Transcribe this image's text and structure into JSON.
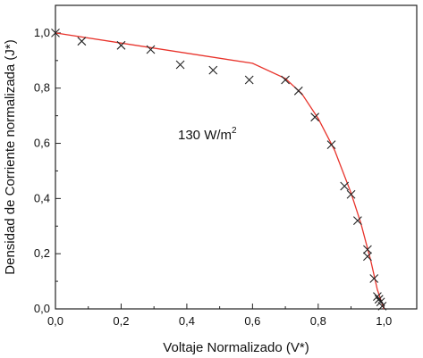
{
  "chart_data": {
    "type": "scatter",
    "xlabel": "Voltaje Normalizado (V*)",
    "ylabel": "Densidad de Corriente normalizada (J*)",
    "xlim": [
      0.0,
      1.1
    ],
    "ylim": [
      0.0,
      1.1
    ],
    "x_ticks": [
      "0,0",
      "0,2",
      "0,4",
      "0,6",
      "0,8",
      "1,0"
    ],
    "y_ticks": [
      "0,0",
      "0,2",
      "0,4",
      "0,6",
      "0,8",
      "1,0"
    ],
    "grid": false,
    "annotation": {
      "text_main": "130 W/m",
      "text_sup": "2"
    },
    "series": [
      {
        "style": "x-markers",
        "color": "#222222",
        "x": [
          0.0,
          0.08,
          0.2,
          0.29,
          0.38,
          0.48,
          0.59,
          0.7,
          0.74,
          0.79,
          0.84,
          0.88,
          0.9,
          0.92,
          0.95,
          0.95,
          0.97,
          0.98,
          0.985,
          0.99,
          0.995
        ],
        "y": [
          1.0,
          0.97,
          0.955,
          0.94,
          0.885,
          0.865,
          0.83,
          0.83,
          0.79,
          0.695,
          0.595,
          0.445,
          0.415,
          0.32,
          0.215,
          0.19,
          0.11,
          0.045,
          0.035,
          0.025,
          0.01
        ]
      },
      {
        "style": "line",
        "color": "#e8332b",
        "x": [
          0.0,
          0.6,
          0.7,
          0.75,
          0.8,
          0.85,
          0.9,
          0.93,
          0.96,
          0.98,
          1.0
        ],
        "y": [
          1.0,
          0.89,
          0.835,
          0.78,
          0.69,
          0.575,
          0.42,
          0.31,
          0.175,
          0.07,
          0.0
        ]
      }
    ]
  }
}
